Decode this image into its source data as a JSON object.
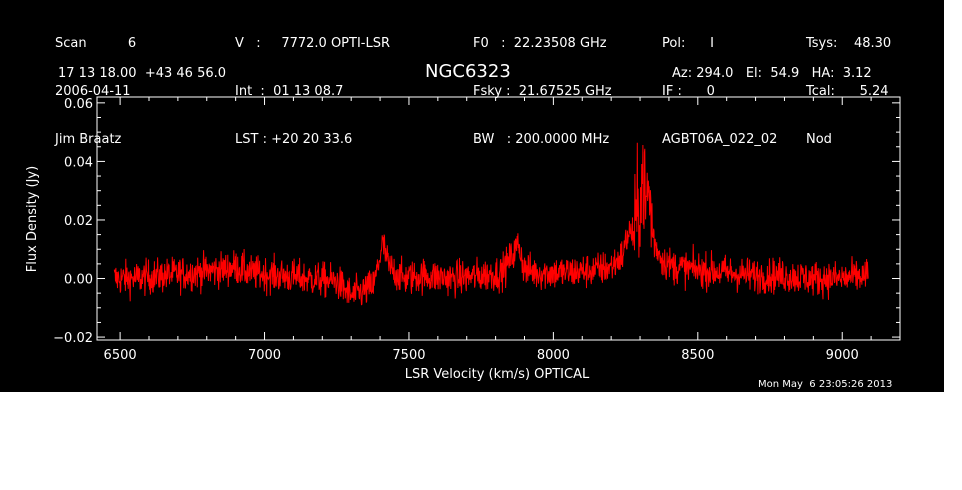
{
  "header": {
    "col1": [
      "Scan          6",
      "2006-04-11",
      "Jim Braatz"
    ],
    "col2": [
      "V   :     7772.0 OPTI-LSR",
      "Int  :  01 13 08.7",
      "LST : +20 20 33.6"
    ],
    "col3": [
      "F0   :  22.23508 GHz",
      "Fsky :  21.67525 GHz",
      "BW   : 200.0000 MHz"
    ],
    "col4": [
      "Pol:      I",
      "IF :      0",
      "AGBT06A_022_02"
    ],
    "col5": [
      "Tsys:    48.30",
      "Tcal:      5.24",
      "Nod"
    ],
    "coords": "17 13 18.00  +43 46 56.0",
    "object": "NGC6323",
    "azel": "Az: 294.0   El:  54.9   HA:  3.12",
    "timestamp": "Mon May  6 23:05:26 2013"
  },
  "chart_data": {
    "type": "line",
    "title": "NGC6323",
    "xlabel": "LSR Velocity (km/s) OPTICAL",
    "ylabel": "Flux Density (Jy)",
    "xlim": [
      6420,
      9200
    ],
    "ylim": [
      -0.021,
      0.062
    ],
    "xticks": [
      6500,
      7000,
      7500,
      8000,
      8500,
      9000
    ],
    "yticks": [
      -0.02,
      0.0,
      0.02,
      0.04,
      0.06
    ],
    "ytick_labels": [
      "−0.02",
      "0.00",
      "0.02",
      "0.04",
      "0.06"
    ],
    "grid": false,
    "line_color": "#ff0000",
    "axis_color": "#ffffff",
    "background": "#000000",
    "series": [
      {
        "x": [
          6480,
          6550,
          6650,
          6750,
          6850,
          6900,
          6950,
          7050,
          7150,
          7250,
          7300,
          7350,
          7380,
          7400,
          7410,
          7430,
          7480,
          7550,
          7650,
          7750,
          7820,
          7860,
          7880,
          7900,
          7950,
          8050,
          8150,
          8200,
          8240,
          8260,
          8280,
          8300,
          8310,
          8320,
          8330,
          8340,
          8350,
          8380,
          8420,
          8500,
          8600,
          8700,
          8800,
          8900,
          9000,
          9090
        ],
        "y": [
          0.0,
          0.0,
          0.001,
          0.002,
          0.003,
          0.004,
          0.002,
          0.001,
          0.0,
          -0.001,
          -0.006,
          -0.004,
          -0.002,
          0.008,
          0.012,
          0.004,
          0.0,
          0.001,
          0.0,
          0.001,
          0.002,
          0.008,
          0.012,
          0.003,
          0.002,
          0.002,
          0.003,
          0.004,
          0.008,
          0.016,
          0.015,
          0.028,
          0.035,
          0.025,
          0.03,
          0.02,
          0.012,
          0.006,
          0.004,
          0.003,
          0.002,
          0.001,
          0.001,
          0.0,
          0.0,
          0.001
        ],
        "noise_rms": 0.003
      }
    ]
  }
}
